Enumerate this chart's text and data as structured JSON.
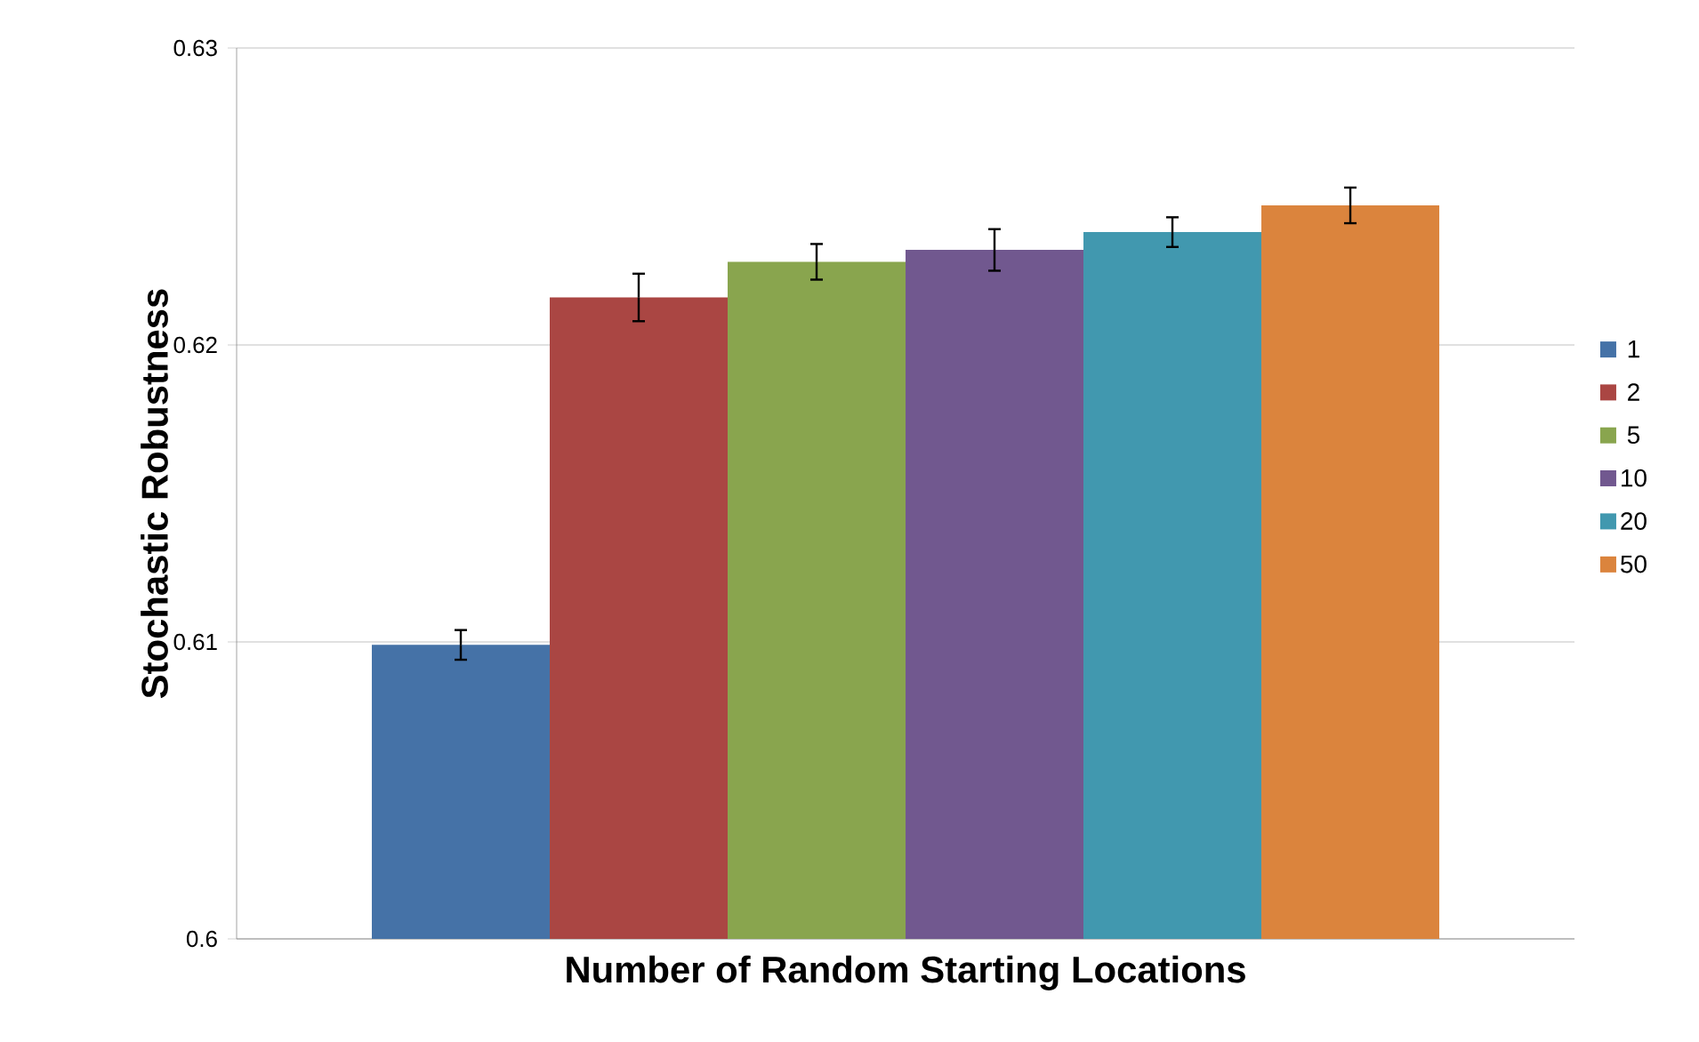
{
  "chart_data": {
    "type": "bar",
    "xlabel": "Number of Random Starting Locations",
    "ylabel": "Stochastic Robustness",
    "categories": [
      null
    ],
    "series": [
      {
        "name": "1",
        "color": "#4572a7",
        "values": [
          0.6099
        ],
        "errors": [
          0.0005
        ]
      },
      {
        "name": "2",
        "color": "#aa4643",
        "values": [
          0.6216
        ],
        "errors": [
          0.0008
        ]
      },
      {
        "name": "5",
        "color": "#89a54e",
        "values": [
          0.6228
        ],
        "errors": [
          0.0006
        ]
      },
      {
        "name": "10",
        "color": "#71588f",
        "values": [
          0.6232
        ],
        "errors": [
          0.0007
        ]
      },
      {
        "name": "20",
        "color": "#4198af",
        "values": [
          0.6238
        ],
        "errors": [
          0.0005
        ]
      },
      {
        "name": "50",
        "color": "#db843d",
        "values": [
          0.6247
        ],
        "errors": [
          0.0006
        ]
      }
    ],
    "ylim": [
      0.6,
      0.63
    ],
    "yticks": [
      0.6,
      0.61,
      0.62,
      0.63
    ],
    "grid": "y",
    "legend": "right"
  }
}
